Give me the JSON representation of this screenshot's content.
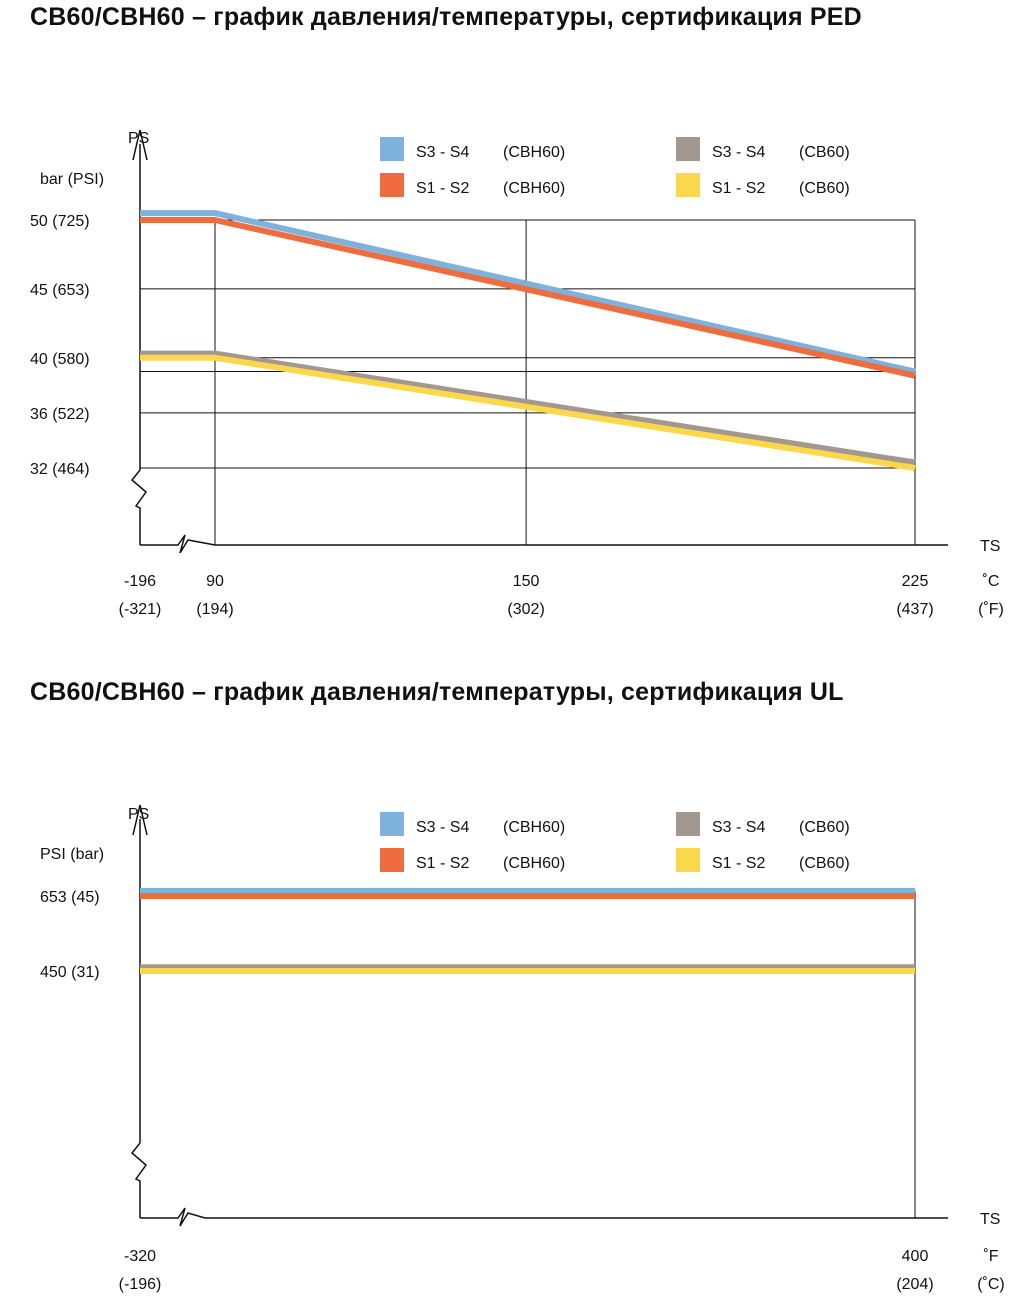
{
  "chart_data": [
    {
      "type": "line",
      "title": "CB60/CBH60 – график давления/температуры, сертификация PED",
      "ylabel": "PS",
      "yunit": "bar (PSI)",
      "xlabel": "TS",
      "xunit_primary": "˚C",
      "xunit_secondary": "(˚F)",
      "xlim": [
        -196,
        225
      ],
      "ylim": [
        32,
        50
      ],
      "axis_break": true,
      "grid": true,
      "y_ticks": [
        {
          "value": 50,
          "label": "50  (725)"
        },
        {
          "value": 45,
          "label": "45  (653)"
        },
        {
          "value": 40,
          "label": "40  (580)"
        },
        {
          "value": 36,
          "label": "36  (522)"
        },
        {
          "value": 32,
          "label": "32  (464)"
        }
      ],
      "x_ticks": [
        {
          "value": -196,
          "label": "-196",
          "sublabel": "(-321)"
        },
        {
          "value": 90,
          "label": "90",
          "sublabel": "(194)"
        },
        {
          "value": 150,
          "label": "150",
          "sublabel": "(302)"
        },
        {
          "value": 225,
          "label": "225",
          "sublabel": "(437)"
        }
      ],
      "legend_placement": "top",
      "series": [
        {
          "name": "S3 - S4",
          "variant": "(CBH60)",
          "color": "#7eb2dc",
          "x": [
            -196,
            90,
            225
          ],
          "y": [
            50.5,
            50.5,
            39
          ]
        },
        {
          "name": "S1 - S2",
          "variant": "(CBH60)",
          "color": "#ef6c3f",
          "x": [
            -196,
            90,
            225
          ],
          "y": [
            50,
            50,
            38.7
          ]
        },
        {
          "name": "S3 - S4",
          "variant": "(CB60)",
          "color": "#a39890",
          "x": [
            -196,
            90,
            225
          ],
          "y": [
            40.3,
            40.3,
            32.4
          ]
        },
        {
          "name": "S1 - S2",
          "variant": "(CB60)",
          "color": "#fbd84b",
          "x": [
            -196,
            90,
            225
          ],
          "y": [
            40,
            40,
            32
          ]
        }
      ]
    },
    {
      "type": "line",
      "title": "CB60/CBH60 – график давления/температуры, сертификация UL",
      "ylabel": "PS",
      "yunit": "PSI  (bar)",
      "xlabel": "TS",
      "xunit_primary": "˚F",
      "xunit_secondary": "(˚C)",
      "xlim": [
        -320,
        400
      ],
      "axis_break": true,
      "grid": false,
      "y_ticks": [
        {
          "value": 653,
          "label": "653 (45)"
        },
        {
          "value": 450,
          "label": "450 (31)"
        }
      ],
      "x_ticks": [
        {
          "value": -320,
          "label": "-320",
          "sublabel": "(-196)"
        },
        {
          "value": 400,
          "label": "400",
          "sublabel": "(204)"
        }
      ],
      "legend_placement": "top",
      "series": [
        {
          "name": "S3 - S4",
          "variant": "(CBH60)",
          "color": "#7eb2dc",
          "x": [
            -320,
            400
          ],
          "y": [
            667,
            667
          ]
        },
        {
          "name": "S1 - S2",
          "variant": "(CBH60)",
          "color": "#ef6c3f",
          "x": [
            -320,
            400
          ],
          "y": [
            653,
            653
          ]
        },
        {
          "name": "S3 - S4",
          "variant": "(CB60)",
          "color": "#a39890",
          "x": [
            -320,
            400
          ],
          "y": [
            460,
            460
          ]
        },
        {
          "name": "S1 - S2",
          "variant": "(CB60)",
          "color": "#fbd84b",
          "x": [
            -320,
            400
          ],
          "y": [
            450,
            450
          ]
        }
      ]
    }
  ]
}
